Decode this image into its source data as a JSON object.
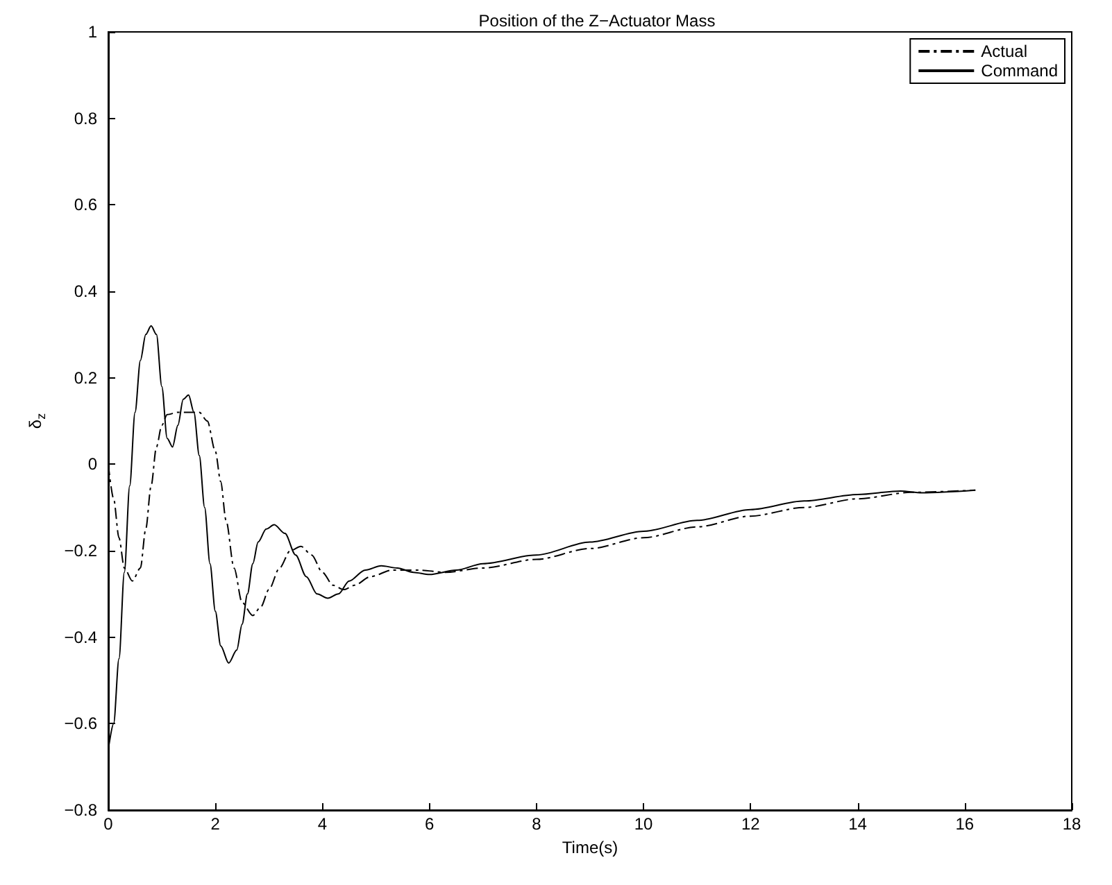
{
  "chart_data": {
    "type": "line",
    "title": "Position of the Z−Actuator Mass",
    "xlabel": "Time(s)",
    "ylabel": "δ$_{z}$",
    "xlim": [
      0,
      18
    ],
    "xticks": [
      0,
      2,
      4,
      6,
      8,
      10,
      12,
      14,
      16,
      18
    ],
    "ylim": [
      -0.8,
      1
    ],
    "yticks": [
      -0.8,
      -0.6,
      -0.4,
      -0.2,
      0,
      0.2,
      0.4,
      0.6,
      0.8,
      1
    ],
    "grid": false,
    "legend": "top right",
    "marker": "none",
    "series": [
      {
        "name": "Actual",
        "color": "#000000",
        "line_style": "dashed",
        "x": [
          0,
          0.1,
          0.2,
          0.3,
          0.45,
          0.6,
          0.7,
          0.8,
          0.9,
          1.0,
          1.1,
          1.3,
          1.5,
          1.7,
          1.85,
          2.0,
          2.1,
          2.2,
          2.35,
          2.5,
          2.7,
          2.85,
          3.0,
          3.2,
          3.4,
          3.6,
          3.8,
          4.0,
          4.2,
          4.4,
          4.6,
          4.9,
          5.3,
          5.8,
          6.3,
          7,
          8,
          9,
          10,
          11,
          12,
          13,
          14,
          15,
          16.2
        ],
        "values": [
          0,
          -0.08,
          -0.17,
          -0.24,
          -0.27,
          -0.24,
          -0.15,
          -0.05,
          0.04,
          0.09,
          0.115,
          0.12,
          0.12,
          0.12,
          0.1,
          0.03,
          -0.04,
          -0.13,
          -0.24,
          -0.32,
          -0.35,
          -0.33,
          -0.29,
          -0.24,
          -0.2,
          -0.19,
          -0.21,
          -0.25,
          -0.28,
          -0.29,
          -0.28,
          -0.26,
          -0.245,
          -0.245,
          -0.25,
          -0.24,
          -0.22,
          -0.195,
          -0.17,
          -0.145,
          -0.12,
          -0.1,
          -0.08,
          -0.065,
          -0.06
        ]
      },
      {
        "name": "Command",
        "color": "#000000",
        "line_style": "solid",
        "x": [
          0,
          0.1,
          0.2,
          0.3,
          0.4,
          0.5,
          0.6,
          0.7,
          0.8,
          0.9,
          1.0,
          1.1,
          1.2,
          1.3,
          1.4,
          1.5,
          1.6,
          1.7,
          1.8,
          1.9,
          2.0,
          2.1,
          2.25,
          2.4,
          2.5,
          2.6,
          2.7,
          2.8,
          2.95,
          3.1,
          3.3,
          3.5,
          3.7,
          3.9,
          4.1,
          4.3,
          4.5,
          4.8,
          5.1,
          5.4,
          5.7,
          6.0,
          6.5,
          7,
          8,
          9,
          10,
          11,
          12,
          13,
          14,
          14.8,
          15.2,
          16.2
        ],
        "values": [
          -0.66,
          -0.6,
          -0.45,
          -0.25,
          -0.05,
          0.12,
          0.24,
          0.3,
          0.32,
          0.3,
          0.18,
          0.06,
          0.04,
          0.09,
          0.15,
          0.16,
          0.12,
          0.02,
          -0.1,
          -0.23,
          -0.34,
          -0.42,
          -0.46,
          -0.43,
          -0.37,
          -0.3,
          -0.23,
          -0.18,
          -0.15,
          -0.14,
          -0.16,
          -0.21,
          -0.26,
          -0.3,
          -0.31,
          -0.3,
          -0.27,
          -0.245,
          -0.235,
          -0.24,
          -0.25,
          -0.255,
          -0.245,
          -0.23,
          -0.21,
          -0.18,
          -0.155,
          -0.13,
          -0.105,
          -0.085,
          -0.07,
          -0.062,
          -0.066,
          -0.06
        ]
      }
    ]
  }
}
